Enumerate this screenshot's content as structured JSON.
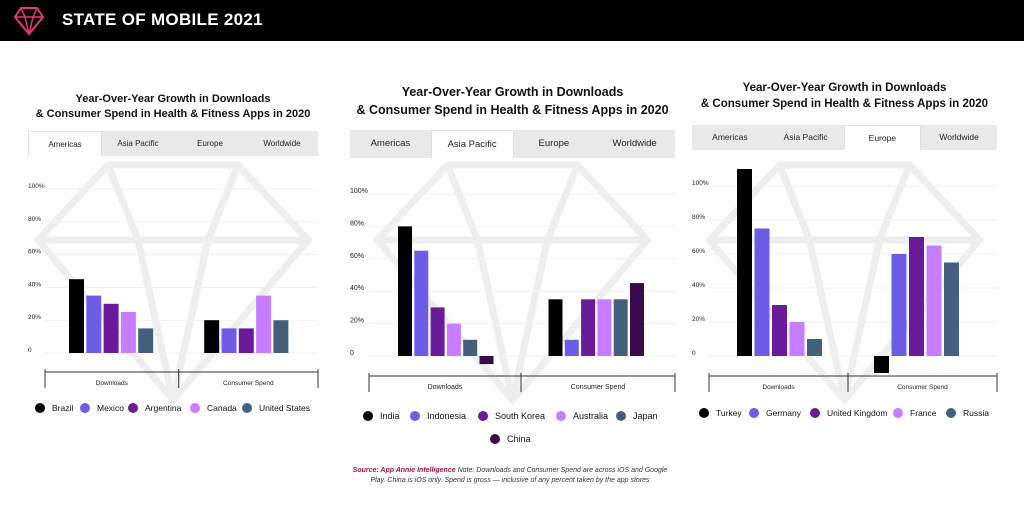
{
  "header": {
    "title": "STATE OF MOBILE 2021"
  },
  "source": {
    "label": "Source: App Annie Intelligence",
    "note": " Note: Downloads and Consumer Spend are across iOS and Google Play. China is iOS only. Spend is gross — inclusive of any percent taken by the app stores"
  },
  "chart_data": [
    {
      "type": "bar",
      "region": "Americas",
      "title": "Year-Over-Year Growth in Downloads & Consumer Spend in Health & Fitness Apps in 2020",
      "title_lines": [
        "Year-Over-Year Growth in Downloads",
        "& Consumer Spend in Health & Fitness Apps in 2020"
      ],
      "tabs": [
        "Americas",
        "Asia Pacific",
        "Europe",
        "Worldwide"
      ],
      "active_tab": "Americas",
      "categories": [
        "Downloads",
        "Consumer Spend"
      ],
      "ylim": [
        0,
        100
      ],
      "yticks": [
        "0",
        "20%",
        "40%",
        "60%",
        "80%",
        "100%"
      ],
      "series": [
        {
          "name": "Brazil",
          "values": [
            45,
            20
          ],
          "color": "#000000"
        },
        {
          "name": "Mexico",
          "values": [
            35,
            15
          ],
          "color": "#6c5ce7"
        },
        {
          "name": "Argentina",
          "values": [
            30,
            15
          ],
          "color": "#6a1b9a"
        },
        {
          "name": "Canada",
          "values": [
            25,
            35
          ],
          "color": "#c77dff"
        },
        {
          "name": "United States",
          "values": [
            15,
            20
          ],
          "color": "#44607d"
        }
      ]
    },
    {
      "type": "bar",
      "region": "Asia Pacific",
      "title": "Year-Over-Year Growth in Downloads & Consumer Spend in Health & Fitness Apps in 2020",
      "title_lines": [
        "Year-Over-Year Growth in Downloads",
        "& Consumer Spend in Health & Fitness Apps in 2020"
      ],
      "tabs": [
        "Americas",
        "Asia Pacific",
        "Europe",
        "Worldwide"
      ],
      "active_tab": "Asia Pacific",
      "categories": [
        "Downloads",
        "Consumer Spend"
      ],
      "ylim": [
        0,
        100
      ],
      "yticks": [
        "0",
        "20%",
        "40%",
        "60%",
        "80%",
        "100%"
      ],
      "series": [
        {
          "name": "India",
          "values": [
            80,
            35
          ],
          "color": "#000000"
        },
        {
          "name": "Indonesia",
          "values": [
            65,
            10
          ],
          "color": "#6c5ce7"
        },
        {
          "name": "South Korea",
          "values": [
            30,
            35
          ],
          "color": "#6a1b9a"
        },
        {
          "name": "Australia",
          "values": [
            20,
            35
          ],
          "color": "#c77dff"
        },
        {
          "name": "Japan",
          "values": [
            10,
            35
          ],
          "color": "#44607d"
        },
        {
          "name": "China",
          "values": [
            -5,
            45
          ],
          "color": "#3a0a4f"
        }
      ]
    },
    {
      "type": "bar",
      "region": "Europe",
      "title": "Year-Over-Year Growth in Downloads & Consumer Spend in Health & Fitness Apps in 2020",
      "title_lines": [
        "Year-Over-Year Growth in Downloads",
        "& Consumer Spend in Health & Fitness Apps in 2020"
      ],
      "tabs": [
        "Americas",
        "Asia Pacific",
        "Europe",
        "Worldwide"
      ],
      "active_tab": "Europe",
      "categories": [
        "Downloads",
        "Consumer Spend"
      ],
      "ylim": [
        0,
        100
      ],
      "yticks": [
        "0",
        "20%",
        "40%",
        "60%",
        "80%",
        "100%"
      ],
      "series": [
        {
          "name": "Turkey",
          "values": [
            110,
            -10
          ],
          "color": "#000000"
        },
        {
          "name": "Germany",
          "values": [
            75,
            60
          ],
          "color": "#6c5ce7"
        },
        {
          "name": "United Kingdom",
          "values": [
            30,
            70
          ],
          "color": "#6a1b9a"
        },
        {
          "name": "France",
          "values": [
            20,
            65
          ],
          "color": "#c77dff"
        },
        {
          "name": "Russia",
          "values": [
            10,
            55
          ],
          "color": "#44607d"
        }
      ]
    }
  ]
}
